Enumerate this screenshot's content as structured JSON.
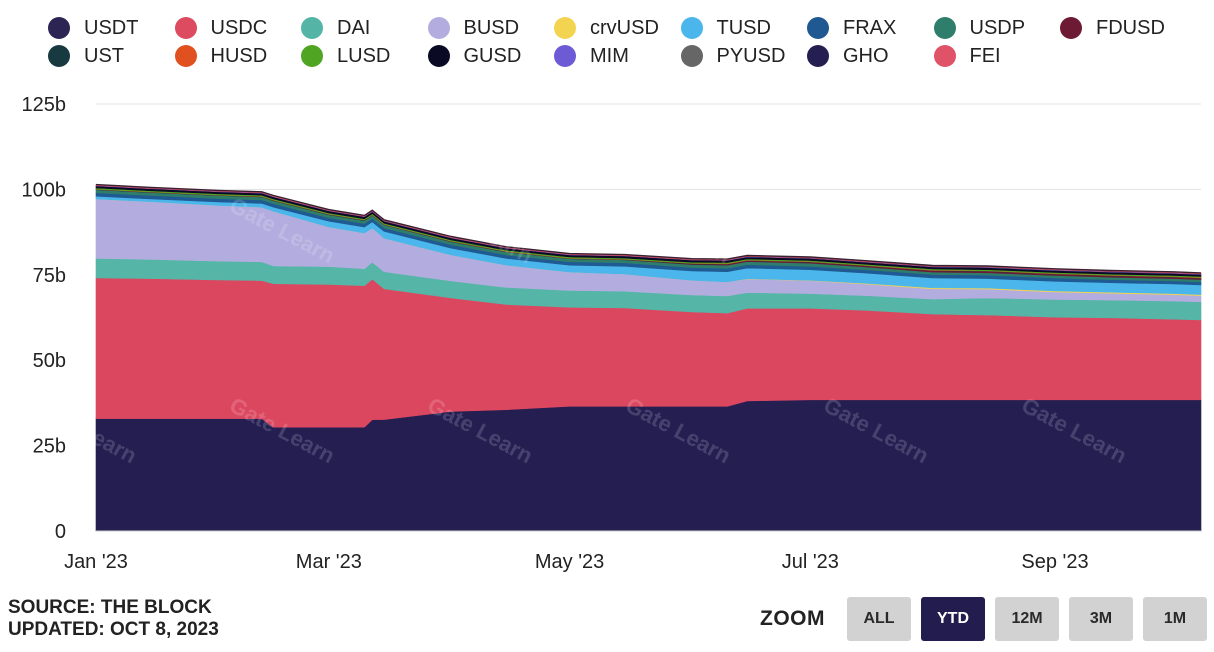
{
  "legend": [
    {
      "name": "USDT",
      "color": "#2c2554"
    },
    {
      "name": "USDC",
      "color": "#dd4b61"
    },
    {
      "name": "DAI",
      "color": "#54b5a7"
    },
    {
      "name": "BUSD",
      "color": "#b3addf"
    },
    {
      "name": "crvUSD",
      "color": "#f3d451"
    },
    {
      "name": "TUSD",
      "color": "#4ab6ec"
    },
    {
      "name": "FRAX",
      "color": "#205891"
    },
    {
      "name": "USDP",
      "color": "#2f7d6b"
    },
    {
      "name": "FDUSD",
      "color": "#6d1a34"
    },
    {
      "name": "UST",
      "color": "#173a41"
    },
    {
      "name": "HUSD",
      "color": "#e1511f"
    },
    {
      "name": "LUSD",
      "color": "#50a622"
    },
    {
      "name": "GUSD",
      "color": "#0a0a24"
    },
    {
      "name": "MIM",
      "color": "#6c5bd5"
    },
    {
      "name": "PYUSD",
      "color": "#666666"
    },
    {
      "name": "GHO",
      "color": "#241e51"
    },
    {
      "name": "FEI",
      "color": "#df5268"
    }
  ],
  "chart_data": {
    "type": "area",
    "stacked": true,
    "title": "",
    "xlabel": "",
    "ylabel": "",
    "ylim": [
      0,
      125
    ],
    "y_ticks": [
      "0",
      "25b",
      "50b",
      "75b",
      "100b",
      "125b"
    ],
    "y_tick_values": [
      0,
      25,
      50,
      75,
      100,
      125
    ],
    "x_ticks": [
      "Jan '23",
      "Mar '23",
      "May '23",
      "Jul '23",
      "Sep '23"
    ],
    "x_tick_values": [
      "2023-01-01",
      "2023-03-01",
      "2023-05-01",
      "2023-07-01",
      "2023-09-01"
    ],
    "unit": "billions USD",
    "grid": true,
    "legend_position": "top",
    "x": [
      "2023-01-01",
      "2023-01-15",
      "2023-02-01",
      "2023-02-12",
      "2023-02-15",
      "2023-03-01",
      "2023-03-10",
      "2023-03-12",
      "2023-03-15",
      "2023-04-01",
      "2023-04-15",
      "2023-05-01",
      "2023-05-15",
      "2023-06-01",
      "2023-06-10",
      "2023-06-15",
      "2023-07-01",
      "2023-07-15",
      "2023-08-01",
      "2023-08-15",
      "2023-09-01",
      "2023-09-15",
      "2023-10-01",
      "2023-10-08"
    ],
    "series": [
      {
        "name": "USDT",
        "color": "#241e51",
        "values": [
          32.9,
          32.9,
          32.9,
          32.9,
          30.4,
          30.4,
          30.4,
          32.6,
          32.6,
          35.0,
          35.5,
          36.5,
          36.5,
          36.5,
          36.5,
          38.1,
          38.4,
          38.4,
          38.4,
          38.4,
          38.4,
          38.4,
          38.4,
          38.4
        ]
      },
      {
        "name": "USDC",
        "color": "#dc4760",
        "values": [
          41.2,
          41.0,
          40.6,
          40.4,
          42.0,
          41.8,
          41.4,
          41.1,
          38.3,
          33.2,
          30.8,
          29.0,
          28.8,
          27.6,
          27.3,
          27.1,
          26.8,
          26.2,
          25.1,
          24.8,
          24.2,
          24.0,
          23.6,
          23.4
        ]
      },
      {
        "name": "DAI",
        "color": "#55b5a7",
        "values": [
          5.7,
          5.6,
          5.5,
          5.5,
          5.2,
          5.2,
          5.0,
          5.0,
          5.0,
          5.0,
          5.0,
          4.9,
          4.9,
          5.0,
          5.0,
          4.6,
          4.3,
          4.3,
          4.4,
          5.0,
          5.2,
          5.2,
          5.3,
          5.3
        ]
      },
      {
        "name": "BUSD",
        "color": "#b3addf",
        "values": [
          17.4,
          16.9,
          16.3,
          16.0,
          16.0,
          11.6,
          10.4,
          10.0,
          9.8,
          7.6,
          6.5,
          5.4,
          5.0,
          4.3,
          4.1,
          4.0,
          3.8,
          3.4,
          3.0,
          2.6,
          2.2,
          2.0,
          1.9,
          1.8
        ]
      },
      {
        "name": "crvUSD",
        "color": "#f3d451",
        "values": [
          0,
          0,
          0,
          0,
          0,
          0,
          0,
          0,
          0,
          0,
          0,
          0,
          0,
          0,
          0,
          0.05,
          0.1,
          0.2,
          0.3,
          0.3,
          0.3,
          0.3,
          0.3,
          0.3
        ]
      },
      {
        "name": "TUSD",
        "color": "#4ab6ec",
        "values": [
          0.8,
          0.8,
          1.0,
          1.1,
          1.2,
          1.7,
          1.8,
          1.8,
          2.0,
          2.0,
          2.0,
          2.0,
          2.3,
          2.7,
          3.0,
          3.1,
          3.1,
          3.0,
          2.9,
          2.8,
          2.8,
          2.8,
          2.8,
          2.8
        ]
      },
      {
        "name": "FRAX",
        "color": "#1f5a92",
        "values": [
          1.0,
          1.0,
          1.0,
          1.0,
          1.0,
          1.0,
          1.0,
          1.0,
          1.0,
          1.0,
          1.0,
          1.0,
          1.0,
          1.0,
          1.0,
          1.0,
          1.0,
          1.0,
          1.0,
          1.0,
          1.0,
          0.9,
          0.9,
          0.9
        ]
      },
      {
        "name": "USDP",
        "color": "#2f7d6b",
        "values": [
          0.9,
          0.9,
          0.9,
          0.9,
          0.9,
          0.9,
          0.9,
          0.9,
          0.9,
          0.9,
          0.9,
          0.9,
          0.9,
          0.9,
          0.9,
          0.9,
          0.9,
          0.8,
          0.7,
          0.7,
          0.7,
          0.7,
          0.7,
          0.7
        ]
      },
      {
        "name": "FDUSD",
        "color": "#6d1a34",
        "values": [
          0,
          0,
          0,
          0,
          0,
          0,
          0,
          0,
          0,
          0,
          0,
          0,
          0,
          0.2,
          0.3,
          0.3,
          0.3,
          0.3,
          0.4,
          0.4,
          0.4,
          0.4,
          0.4,
          0.4
        ]
      },
      {
        "name": "UST",
        "color": "#173a41",
        "values": [
          0.1,
          0.1,
          0.1,
          0.1,
          0.1,
          0.1,
          0.1,
          0.1,
          0.1,
          0.1,
          0.1,
          0.1,
          0.1,
          0.1,
          0.1,
          0.1,
          0.1,
          0.1,
          0.1,
          0.1,
          0.1,
          0.1,
          0.1,
          0.1
        ]
      },
      {
        "name": "HUSD",
        "color": "#e1511f",
        "values": [
          0.1,
          0.1,
          0.1,
          0.1,
          0.1,
          0.1,
          0.1,
          0.1,
          0.1,
          0.1,
          0.1,
          0.1,
          0.1,
          0.1,
          0.1,
          0.1,
          0.1,
          0.1,
          0.1,
          0.1,
          0.1,
          0.1,
          0.1,
          0.1
        ]
      },
      {
        "name": "LUSD",
        "color": "#50a622",
        "values": [
          0.3,
          0.3,
          0.3,
          0.3,
          0.3,
          0.3,
          0.3,
          0.3,
          0.3,
          0.3,
          0.3,
          0.3,
          0.3,
          0.3,
          0.3,
          0.3,
          0.3,
          0.3,
          0.3,
          0.3,
          0.3,
          0.3,
          0.3,
          0.3
        ]
      },
      {
        "name": "GUSD",
        "color": "#0a0a24",
        "values": [
          0.6,
          0.6,
          0.6,
          0.6,
          0.6,
          0.6,
          0.6,
          0.6,
          0.6,
          0.6,
          0.6,
          0.6,
          0.6,
          0.6,
          0.6,
          0.6,
          0.6,
          0.6,
          0.6,
          0.6,
          0.6,
          0.6,
          0.6,
          0.6
        ]
      },
      {
        "name": "MIM",
        "color": "#6c5bd5",
        "values": [
          0.1,
          0.1,
          0.1,
          0.1,
          0.1,
          0.1,
          0.1,
          0.1,
          0.1,
          0.1,
          0.1,
          0.1,
          0.1,
          0.1,
          0.1,
          0.1,
          0.1,
          0.1,
          0.1,
          0.1,
          0.1,
          0.1,
          0.1,
          0.1
        ]
      },
      {
        "name": "PYUSD",
        "color": "#666666",
        "values": [
          0,
          0,
          0,
          0,
          0,
          0,
          0,
          0,
          0,
          0,
          0,
          0,
          0,
          0,
          0,
          0,
          0,
          0,
          0,
          0.05,
          0.05,
          0.05,
          0.05,
          0.05
        ]
      },
      {
        "name": "GHO",
        "color": "#241e51",
        "values": [
          0,
          0,
          0,
          0,
          0,
          0,
          0,
          0,
          0,
          0,
          0,
          0,
          0,
          0,
          0,
          0,
          0.02,
          0.02,
          0.02,
          0.02,
          0.02,
          0.02,
          0.02,
          0.02
        ]
      },
      {
        "name": "FEI",
        "color": "#df5268",
        "values": [
          0.3,
          0.3,
          0.3,
          0.3,
          0.3,
          0.3,
          0.3,
          0.3,
          0.3,
          0.3,
          0.3,
          0.3,
          0.3,
          0.3,
          0.3,
          0.3,
          0.3,
          0.3,
          0.3,
          0.3,
          0.3,
          0.3,
          0.3,
          0.3
        ]
      }
    ]
  },
  "footer": {
    "source": "SOURCE: THE BLOCK",
    "updated": "UPDATED: OCT 8, 2023"
  },
  "zoom": {
    "label": "ZOOM",
    "buttons": [
      {
        "label": "ALL",
        "active": false
      },
      {
        "label": "YTD",
        "active": true
      },
      {
        "label": "12M",
        "active": false
      },
      {
        "label": "3M",
        "active": false
      },
      {
        "label": "1M",
        "active": false
      }
    ]
  },
  "watermark": "Gate Learn"
}
